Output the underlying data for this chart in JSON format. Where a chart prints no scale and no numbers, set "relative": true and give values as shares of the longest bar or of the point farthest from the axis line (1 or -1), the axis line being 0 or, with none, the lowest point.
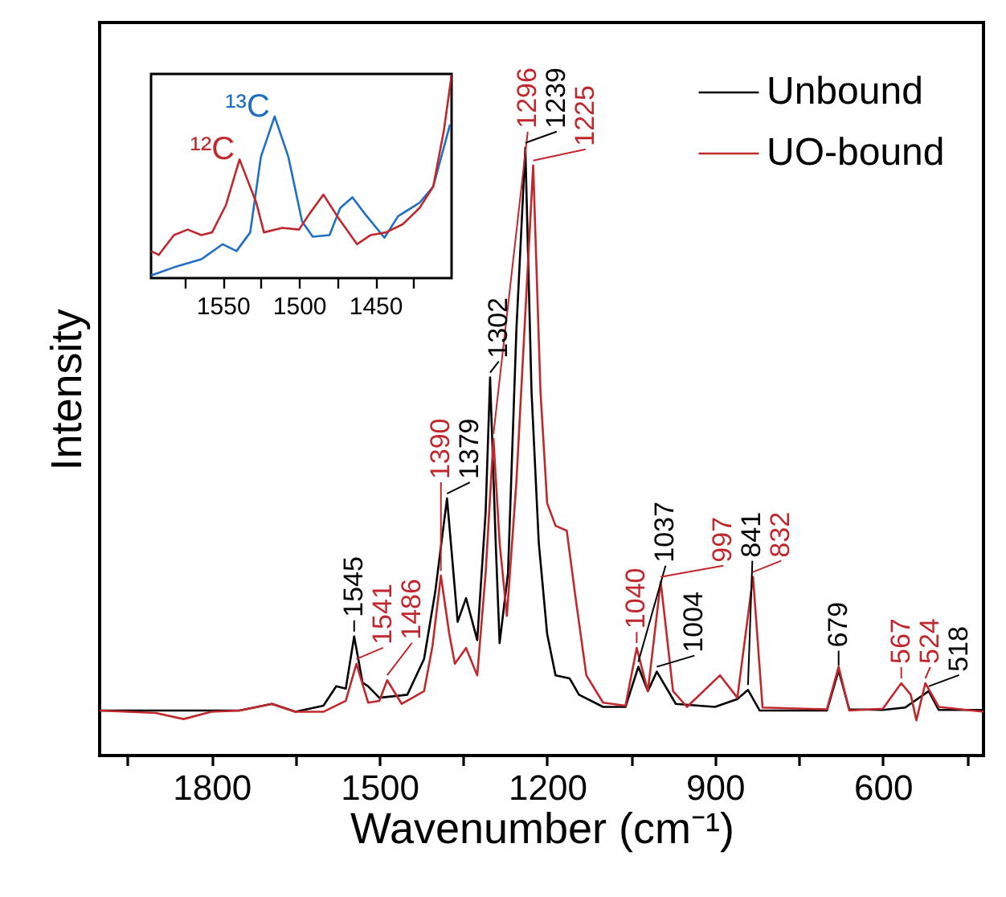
{
  "chart_data": [
    {
      "type": "line",
      "xlabel": "Wavenumber (cm⁻¹)",
      "ylabel": "Intensity",
      "relative": true,
      "legend": "top right",
      "xlim": [
        2000,
        420
      ],
      "xticks": [
        {
          "value": 1950,
          "label": null
        },
        1800,
        {
          "value": 1650,
          "label": null
        },
        1500,
        {
          "value": 1350,
          "label": null
        },
        1200,
        {
          "value": 1050,
          "label": null
        },
        900,
        {
          "value": 750,
          "label": null
        },
        600,
        {
          "value": 450,
          "label": null
        }
      ],
      "series": [
        {
          "name": "Unbound",
          "color": "#000000",
          "x": [
            2000,
            1900,
            1750,
            1692,
            1650,
            1600,
            1577,
            1560,
            1545,
            1530,
            1520,
            1500,
            1450,
            1420,
            1400,
            1379,
            1360,
            1345,
            1325,
            1310,
            1302,
            1292,
            1285,
            1270,
            1255,
            1239,
            1228,
            1215,
            1200,
            1185,
            1160,
            1143,
            1100,
            1060,
            1037,
            1020,
            1004,
            970,
            900,
            860,
            841,
            820,
            700,
            679,
            660,
            600,
            560,
            518,
            500,
            420
          ],
          "values": [
            0.074,
            0.074,
            0.074,
            0.085,
            0.072,
            0.082,
            0.114,
            0.11,
            0.196,
            0.12,
            0.114,
            0.095,
            0.1,
            0.159,
            0.27,
            0.423,
            0.22,
            0.259,
            0.19,
            0.4,
            0.622,
            0.35,
            0.185,
            0.3,
            0.7,
            1.0,
            0.6,
            0.35,
            0.2,
            0.132,
            0.127,
            0.1,
            0.08,
            0.08,
            0.146,
            0.106,
            0.138,
            0.085,
            0.08,
            0.093,
            0.108,
            0.074,
            0.074,
            0.14,
            0.076,
            0.075,
            0.079,
            0.106,
            0.075,
            0.075
          ]
        },
        {
          "name": "UO-bound",
          "color": "#c0282d",
          "x": [
            2000,
            1900,
            1850,
            1800,
            1750,
            1692,
            1650,
            1600,
            1560,
            1541,
            1520,
            1500,
            1486,
            1460,
            1420,
            1405,
            1390,
            1375,
            1365,
            1345,
            1325,
            1310,
            1296,
            1285,
            1272,
            1255,
            1225,
            1212,
            1200,
            1185,
            1165,
            1150,
            1130,
            1100,
            1060,
            1040,
            1020,
            997,
            975,
            950,
            891,
            860,
            832,
            815,
            700,
            679,
            660,
            600,
            567,
            550,
            540,
            524,
            500,
            420
          ],
          "values": [
            0.074,
            0.07,
            0.06,
            0.072,
            0.074,
            0.085,
            0.072,
            0.072,
            0.09,
            0.151,
            0.087,
            0.09,
            0.124,
            0.085,
            0.106,
            0.18,
            0.296,
            0.2,
            0.151,
            0.177,
            0.132,
            0.3,
            0.521,
            0.35,
            0.23,
            0.45,
            0.971,
            0.6,
            0.415,
            0.378,
            0.37,
            0.265,
            0.132,
            0.087,
            0.082,
            0.177,
            0.106,
            0.286,
            0.106,
            0.08,
            0.132,
            0.095,
            0.294,
            0.079,
            0.076,
            0.146,
            0.074,
            0.077,
            0.119,
            0.1,
            0.058,
            0.119,
            0.08,
            0.072
          ]
        }
      ],
      "annotations": [
        {
          "text": "1545",
          "x": 1545,
          "y": 0.196
        },
        {
          "text": "1541",
          "x": 1541,
          "y": 0.151
        },
        {
          "text": "1486",
          "x": 1486,
          "y": 0.124
        },
        {
          "text": "1390",
          "x": 1390,
          "y": 0.296
        },
        {
          "text": "1379",
          "x": 1379,
          "y": 0.423
        },
        {
          "text": "1302",
          "x": 1302,
          "y": 0.622
        },
        {
          "text": "1296",
          "x": 1296,
          "y": 0.521
        },
        {
          "text": "1239",
          "x": 1239,
          "y": 1.0
        },
        {
          "text": "1225",
          "x": 1225,
          "y": 0.971
        },
        {
          "text": "1040",
          "x": 1040,
          "y": 0.177
        },
        {
          "text": "1037",
          "x": 1037,
          "y": 0.146
        },
        {
          "text": "1004",
          "x": 1004,
          "y": 0.138
        },
        {
          "text": "997",
          "x": 997,
          "y": 0.286
        },
        {
          "text": "841",
          "x": 841,
          "y": 0.108
        },
        {
          "text": "832",
          "x": 832,
          "y": 0.294
        },
        {
          "text": "679",
          "x": 679,
          "y": 0.14
        },
        {
          "text": "567",
          "x": 567,
          "y": 0.119
        },
        {
          "text": "524",
          "x": 524,
          "y": 0.119
        },
        {
          "text": "518",
          "x": 518,
          "y": 0.106
        }
      ]
    },
    {
      "type": "line",
      "relative": true,
      "xlim": [
        1597,
        1400
      ],
      "xticks": [
        {
          "value": 1575,
          "label": null
        },
        1550,
        {
          "value": 1525,
          "label": null
        },
        1500,
        {
          "value": 1475,
          "label": null
        },
        1450,
        {
          "value": 1425,
          "label": null
        }
      ],
      "series": [
        {
          "name": "¹³C",
          "color": "#1f6fc5",
          "x": [
            1597,
            1582,
            1564,
            1550,
            1541,
            1532,
            1525,
            1516,
            1507,
            1498,
            1491,
            1480,
            1473,
            1465,
            1457,
            1444,
            1435,
            1421,
            1412,
            1401
          ],
          "values": [
            0.013,
            0.053,
            0.093,
            0.167,
            0.133,
            0.225,
            0.597,
            0.796,
            0.597,
            0.279,
            0.204,
            0.212,
            0.345,
            0.398,
            0.318,
            0.199,
            0.305,
            0.371,
            0.451,
            0.756
          ]
        },
        {
          "name": "¹²C",
          "color": "#c0282d",
          "x": [
            1597,
            1592,
            1582,
            1573,
            1564,
            1557,
            1548,
            1539,
            1528,
            1523,
            1511,
            1500,
            1493,
            1484,
            1475,
            1462,
            1453,
            1443,
            1432,
            1421,
            1412,
            1405,
            1400
          ],
          "values": [
            0.133,
            0.114,
            0.212,
            0.239,
            0.212,
            0.225,
            0.358,
            0.584,
            0.371,
            0.225,
            0.247,
            0.239,
            0.318,
            0.411,
            0.305,
            0.167,
            0.212,
            0.225,
            0.265,
            0.345,
            0.451,
            0.729,
            1.0
          ]
        }
      ]
    }
  ]
}
